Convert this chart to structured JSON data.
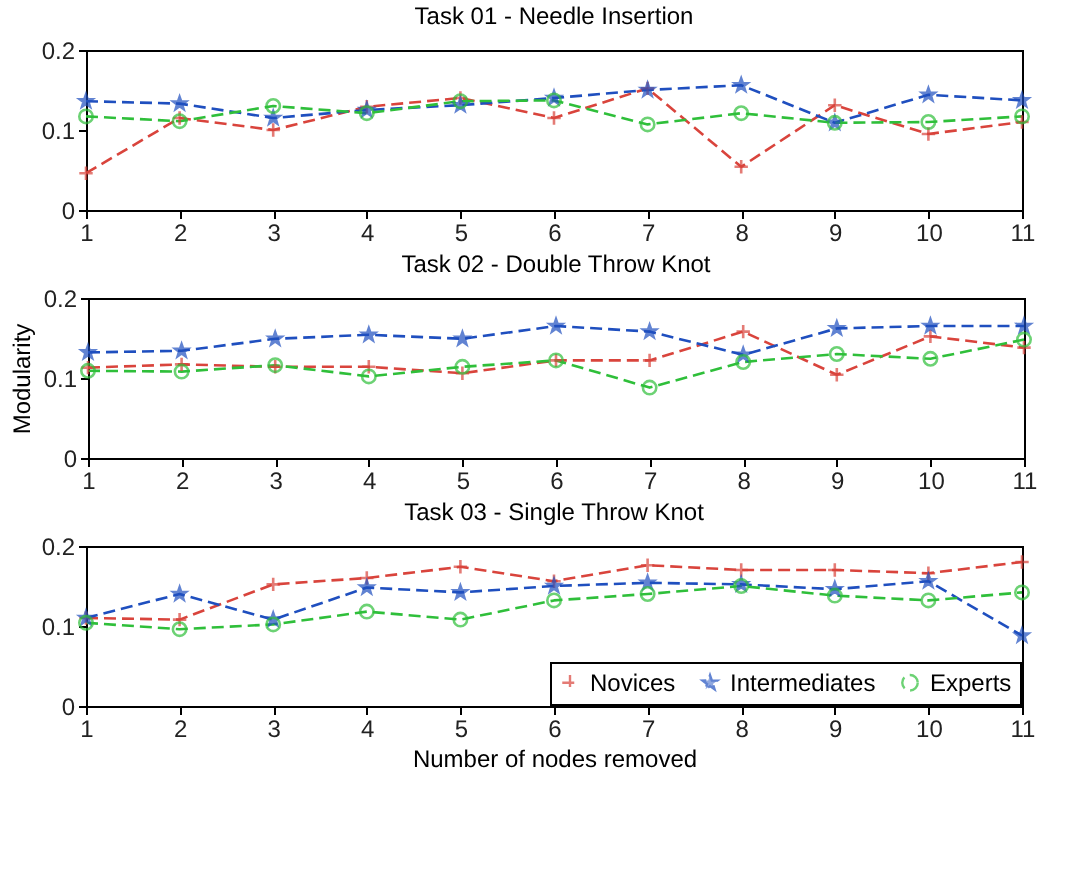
{
  "chart_data": [
    {
      "type": "line",
      "title": "Task 01 - Needle Insertion",
      "x": [
        1,
        2,
        3,
        4,
        5,
        6,
        7,
        8,
        9,
        10,
        11
      ],
      "xlim": [
        1,
        11
      ],
      "xticks": [
        1,
        2,
        3,
        4,
        5,
        6,
        7,
        8,
        9,
        10,
        11
      ],
      "ylim": [
        0,
        0.2
      ],
      "yticks": [
        0,
        0.1,
        0.2
      ],
      "series": [
        {
          "color": "#d9443c",
          "marker": "cross",
          "line_style": "dashed",
          "values": [
            0.046,
            0.115,
            0.1,
            0.129,
            0.14,
            0.115,
            0.152,
            0.054,
            0.131,
            0.095,
            0.11
          ]
        },
        {
          "color": "#1f4fbf",
          "marker": "star",
          "line_style": "dashed",
          "values": [
            0.136,
            0.133,
            0.115,
            0.125,
            0.131,
            0.14,
            0.15,
            0.156,
            0.109,
            0.144,
            0.137
          ]
        },
        {
          "color": "#2fbf3a",
          "marker": "circle",
          "line_style": "dashed",
          "values": [
            0.117,
            0.111,
            0.13,
            0.121,
            0.136,
            0.137,
            0.107,
            0.121,
            0.109,
            0.11,
            0.117
          ]
        }
      ]
    },
    {
      "type": "line",
      "title": "Task 02 - Double Throw Knot",
      "ylabel": "Modularity",
      "x": [
        1,
        2,
        3,
        4,
        5,
        6,
        7,
        8,
        9,
        10,
        11
      ],
      "xlim": [
        1,
        11
      ],
      "xticks": [
        1,
        2,
        3,
        4,
        5,
        6,
        7,
        8,
        9,
        10,
        11
      ],
      "ylim": [
        0,
        0.2
      ],
      "yticks": [
        0,
        0.1,
        0.2
      ],
      "series": [
        {
          "color": "#d9443c",
          "marker": "cross",
          "line_style": "dashed",
          "values": [
            0.113,
            0.117,
            0.114,
            0.114,
            0.106,
            0.122,
            0.122,
            0.158,
            0.104,
            0.152,
            0.138
          ]
        },
        {
          "color": "#1f4fbf",
          "marker": "star",
          "line_style": "dashed",
          "values": [
            0.132,
            0.134,
            0.149,
            0.154,
            0.149,
            0.165,
            0.158,
            0.129,
            0.162,
            0.165,
            0.165
          ]
        },
        {
          "color": "#2fbf3a",
          "marker": "circle",
          "line_style": "dashed",
          "values": [
            0.109,
            0.108,
            0.116,
            0.102,
            0.114,
            0.122,
            0.088,
            0.12,
            0.13,
            0.124,
            0.148
          ]
        }
      ]
    },
    {
      "type": "line",
      "title": "Task 03 - Single Throw Knot",
      "xlabel": "Number of nodes removed",
      "x": [
        1,
        2,
        3,
        4,
        5,
        6,
        7,
        8,
        9,
        10,
        11
      ],
      "xlim": [
        1,
        11
      ],
      "xticks": [
        1,
        2,
        3,
        4,
        5,
        6,
        7,
        8,
        9,
        10,
        11
      ],
      "ylim": [
        0,
        0.2
      ],
      "yticks": [
        0,
        0.1,
        0.2
      ],
      "legend": "bottom right",
      "series": [
        {
          "name": "Novices",
          "color": "#d9443c",
          "marker": "cross",
          "line_style": "dashed",
          "values": [
            0.11,
            0.108,
            0.152,
            0.16,
            0.174,
            0.156,
            0.176,
            0.17,
            0.17,
            0.166,
            0.18
          ]
        },
        {
          "name": "Intermediates",
          "color": "#1f4fbf",
          "marker": "star",
          "line_style": "dashed",
          "values": [
            0.11,
            0.14,
            0.108,
            0.148,
            0.142,
            0.15,
            0.154,
            0.152,
            0.146,
            0.156,
            0.088
          ]
        },
        {
          "name": "Experts",
          "color": "#2fbf3a",
          "marker": "circle",
          "line_style": "dashed",
          "values": [
            0.104,
            0.096,
            0.102,
            0.118,
            0.108,
            0.132,
            0.14,
            0.15,
            0.138,
            0.132,
            0.142
          ]
        }
      ]
    }
  ]
}
